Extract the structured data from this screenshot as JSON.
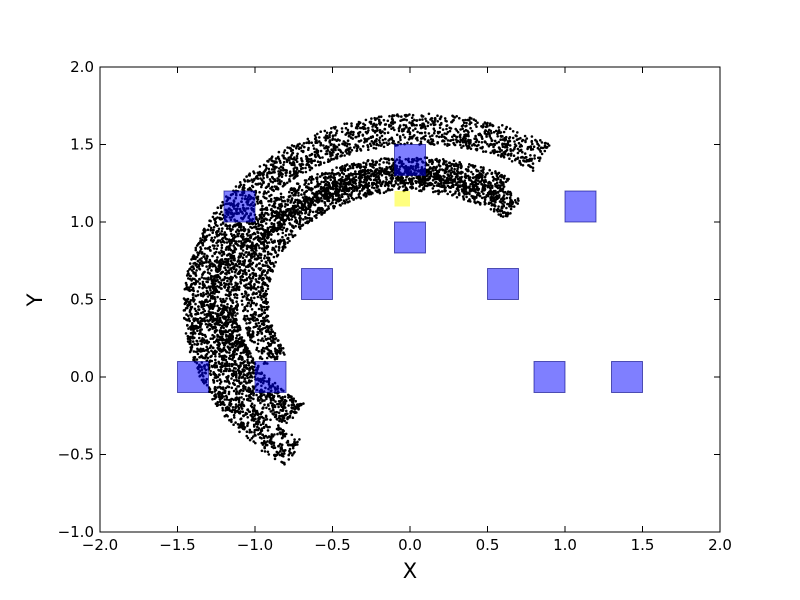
{
  "chart_data": {
    "type": "scatter",
    "title": "",
    "xlabel": "X",
    "ylabel": "Y",
    "xlim": [
      -2.0,
      2.0
    ],
    "ylim": [
      -1.0,
      2.0
    ],
    "grid": false,
    "x_ticks": [
      "−2.0",
      "−1.5",
      "−1.0",
      "−0.5",
      "0.0",
      "0.5",
      "1.0",
      "1.5",
      "2.0"
    ],
    "y_ticks": [
      "−1.0",
      "−0.5",
      "0.0",
      "0.5",
      "1.0",
      "1.5",
      "2.0"
    ],
    "point_color": "#000000",
    "attractor_bands": [
      {
        "cx": 0.07,
        "cy": 0.45,
        "rx": 1.43,
        "ry": 1.15,
        "start_deg": -125,
        "end_deg": -303,
        "width": 0.2,
        "points": 2600
      },
      {
        "cx": 0.0,
        "cy": 0.45,
        "rx": 1.2,
        "ry": 0.88,
        "start_deg": -128,
        "end_deg": -300,
        "width": 0.18,
        "points": 2400
      },
      {
        "cx": 0.0,
        "cy": 0.5,
        "rx": 1.0,
        "ry": 0.78,
        "start_deg": -150,
        "end_deg": -312,
        "width": 0.17,
        "points": 1400
      }
    ],
    "boxes": [
      {
        "x": 0.0,
        "y": 1.4,
        "color": "#0000ff",
        "overlap": 0.6
      },
      {
        "x": -1.1,
        "y": 1.1,
        "color": "#0000ff",
        "overlap": 0.7
      },
      {
        "x": 1.1,
        "y": 1.1,
        "color": "#0000ff",
        "overlap": 0.6
      },
      {
        "x": 0.0,
        "y": 0.9,
        "color": "#0000ff",
        "overlap": 1.0
      },
      {
        "x": -0.6,
        "y": 0.6,
        "color": "#0000ff",
        "overlap": 0.3
      },
      {
        "x": 0.6,
        "y": 0.6,
        "color": "#0000ff",
        "overlap": 0.8
      },
      {
        "x": -1.4,
        "y": 0.0,
        "color": "#0000ff",
        "overlap": 1.0
      },
      {
        "x": -0.9,
        "y": 0.0,
        "color": "#0000ff",
        "overlap": 0.7
      },
      {
        "x": 0.9,
        "y": 0.0,
        "color": "#0000ff",
        "overlap": 1.0
      },
      {
        "x": 1.4,
        "y": 0.0,
        "color": "#0000ff",
        "overlap": 1.0
      }
    ],
    "box_size": 0.2,
    "highlight_box": {
      "x": -0.05,
      "y": 1.15,
      "size": 0.1,
      "color": "#ffff00"
    }
  }
}
